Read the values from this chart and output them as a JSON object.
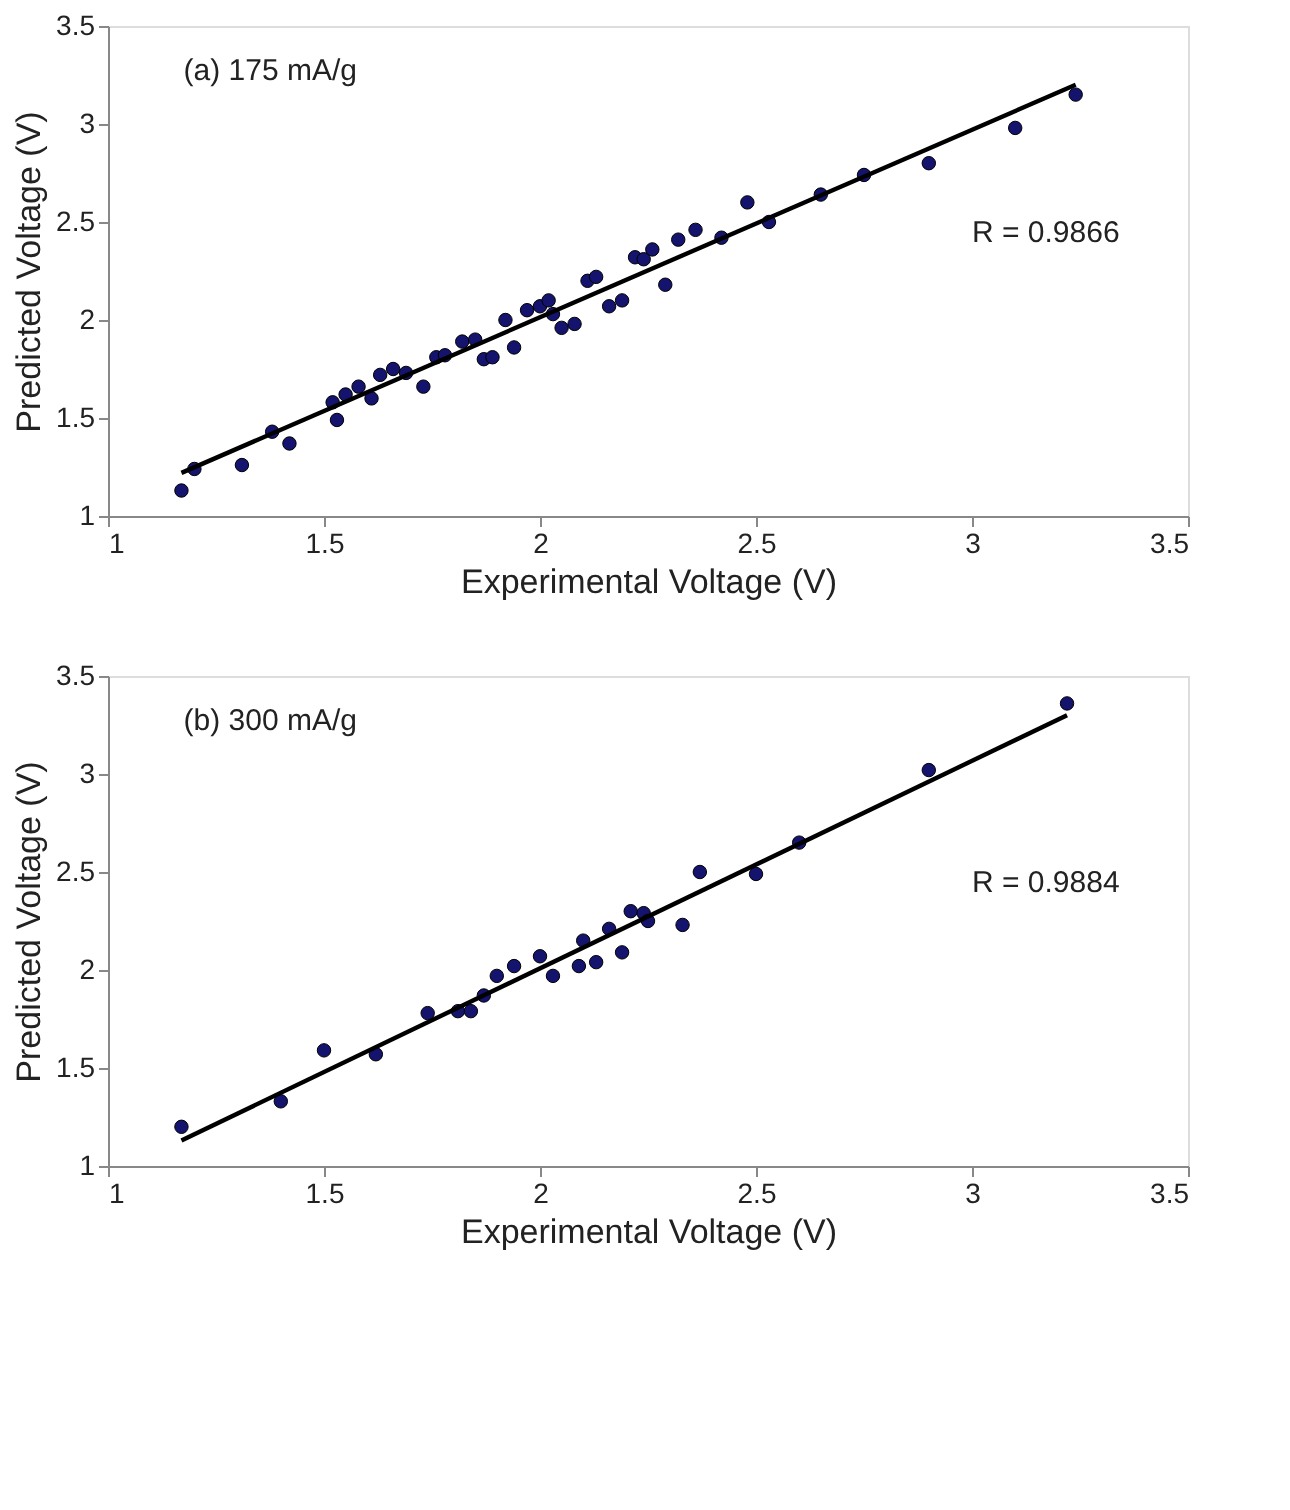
{
  "chart_data": [
    {
      "type": "scatter",
      "xlabel": "Experimental Voltage (V)",
      "ylabel": "Predicted Voltage (V)",
      "xlim": [
        1,
        3.5
      ],
      "ylim": [
        1,
        3.5
      ],
      "xticks": [
        1,
        1.5,
        2,
        2.5,
        3,
        3.5
      ],
      "yticks": [
        1,
        1.5,
        2,
        2.5,
        3,
        3.5
      ],
      "grid": false,
      "legend": false,
      "marker": "circle",
      "annotations": [
        "(a) 175 mA/g",
        "R = 0.9866"
      ],
      "series": [
        {
          "color": "#14146e",
          "x": [
            1.17,
            1.2,
            1.31,
            1.38,
            1.42,
            1.52,
            1.53,
            1.55,
            1.58,
            1.61,
            1.63,
            1.66,
            1.69,
            1.73,
            1.76,
            1.78,
            1.82,
            1.85,
            1.87,
            1.89,
            1.92,
            1.94,
            1.97,
            2.0,
            2.02,
            2.03,
            2.05,
            2.08,
            2.11,
            2.13,
            2.16,
            2.19,
            2.22,
            2.24,
            2.26,
            2.29,
            2.32,
            2.36,
            2.42,
            2.48,
            2.53,
            2.65,
            2.75,
            2.9,
            3.1,
            3.24
          ],
          "values": [
            1.13,
            1.24,
            1.26,
            1.43,
            1.37,
            1.58,
            1.49,
            1.62,
            1.66,
            1.6,
            1.72,
            1.75,
            1.73,
            1.66,
            1.81,
            1.82,
            1.89,
            1.9,
            1.8,
            1.81,
            2.0,
            1.86,
            2.05,
            2.07,
            2.1,
            2.03,
            1.96,
            1.98,
            2.2,
            2.22,
            2.07,
            2.1,
            2.32,
            2.31,
            2.36,
            2.18,
            2.41,
            2.46,
            2.42,
            2.6,
            2.5,
            2.64,
            2.74,
            2.8,
            2.98,
            3.15
          ]
        },
        {
          "type": "line",
          "color": "#000000",
          "marker": "none",
          "line_style": "solid",
          "x": [
            1.17,
            3.24
          ],
          "values": [
            1.22,
            3.2
          ]
        }
      ]
    },
    {
      "type": "scatter",
      "xlabel": "Experimental Voltage (V)",
      "ylabel": "Predicted Voltage (V)",
      "xlim": [
        1,
        3.5
      ],
      "ylim": [
        1,
        3.5
      ],
      "xticks": [
        1,
        1.5,
        2,
        2.5,
        3,
        3.5
      ],
      "yticks": [
        1,
        1.5,
        2,
        2.5,
        3,
        3.5
      ],
      "grid": false,
      "legend": false,
      "marker": "circle",
      "annotations": [
        "(b)  300 mA/g",
        "R = 0.9884"
      ],
      "series": [
        {
          "color": "#14146e",
          "x": [
            1.17,
            1.4,
            1.5,
            1.62,
            1.74,
            1.81,
            1.84,
            1.87,
            1.9,
            1.94,
            2.0,
            2.03,
            2.09,
            2.1,
            2.13,
            2.16,
            2.19,
            2.21,
            2.24,
            2.25,
            2.33,
            2.37,
            2.5,
            2.6,
            2.9,
            3.22
          ],
          "values": [
            1.2,
            1.33,
            1.59,
            1.57,
            1.78,
            1.79,
            1.79,
            1.87,
            1.97,
            2.02,
            2.07,
            1.97,
            2.02,
            2.15,
            2.04,
            2.21,
            2.09,
            2.3,
            2.29,
            2.25,
            2.23,
            2.5,
            2.49,
            2.65,
            3.02,
            3.36
          ]
        },
        {
          "type": "line",
          "color": "#000000",
          "marker": "none",
          "line_style": "solid",
          "x": [
            1.17,
            3.22
          ],
          "values": [
            1.13,
            3.3
          ]
        }
      ]
    }
  ]
}
